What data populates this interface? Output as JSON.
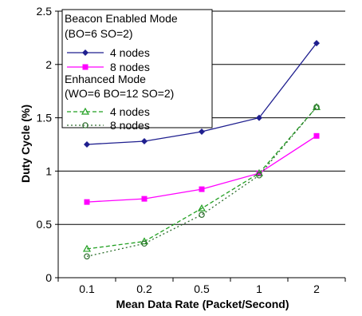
{
  "chart_data": {
    "type": "line",
    "xlabel": "Mean Data Rate (Packet/Second)",
    "ylabel": "Duty Cycle (%)",
    "categories": [
      "0.1",
      "0.2",
      "0.5",
      "1",
      "2"
    ],
    "ylim": [
      0,
      2.5
    ],
    "yticks": [
      "0",
      "0.5",
      "1",
      "1.5",
      "2",
      "2.5"
    ],
    "grid": "horizontal",
    "legend": {
      "placement": "top-left",
      "groups": [
        {
          "heading": "Beacon Enabled Mode",
          "subheading": "(BO=6 SO=2)"
        },
        {
          "heading": "Enhanced Mode",
          "subheading": "(WO=6 BO=12 SO=2)"
        }
      ]
    },
    "series": [
      {
        "name": "4 nodes",
        "group": 0,
        "color": "#1f1f8f",
        "style": "solid",
        "marker": "diamond",
        "values": [
          1.25,
          1.28,
          1.37,
          1.5,
          2.2
        ]
      },
      {
        "name": "8 nodes",
        "group": 0,
        "color": "#ff00ff",
        "style": "solid",
        "marker": "square",
        "values": [
          0.71,
          0.74,
          0.83,
          0.98,
          1.33
        ]
      },
      {
        "name": "4 nodes",
        "group": 1,
        "color": "#22a022",
        "style": "dashed",
        "marker": "triangle",
        "values": [
          0.27,
          0.34,
          0.65,
          0.98,
          1.6
        ]
      },
      {
        "name": "8 nodes",
        "group": 1,
        "color": "#2e6e2e",
        "style": "dotted",
        "marker": "circle",
        "values": [
          0.2,
          0.32,
          0.59,
          0.96,
          1.6
        ]
      }
    ]
  }
}
